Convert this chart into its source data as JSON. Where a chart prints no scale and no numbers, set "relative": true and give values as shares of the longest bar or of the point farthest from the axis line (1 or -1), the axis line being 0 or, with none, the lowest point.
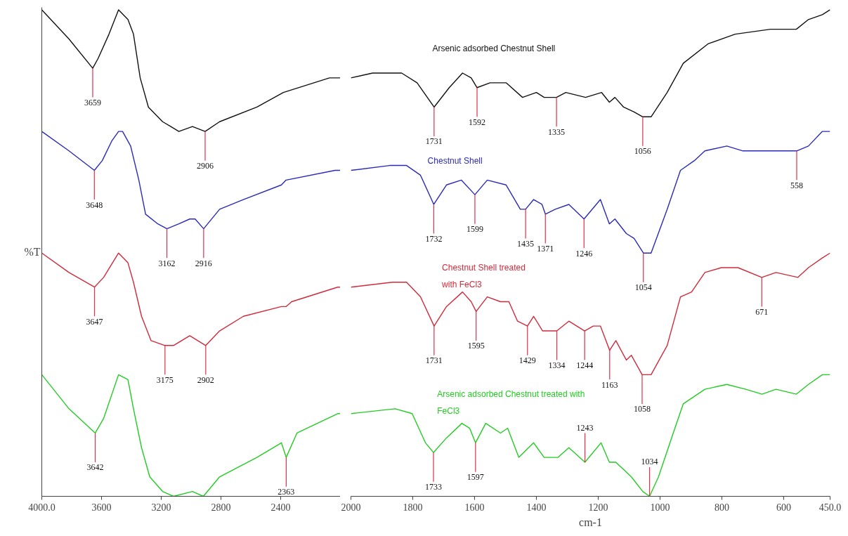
{
  "chart_data": [
    {
      "type": "line",
      "relative": true,
      "ylabel": "%T",
      "xlim": [
        4000,
        2000
      ],
      "xticks": [
        {
          "value": 4000,
          "label": "4000.0"
        },
        3600,
        3200,
        2800,
        2400
      ],
      "tick_labels": "x",
      "grid": false,
      "marker": "none",
      "line_style": "solid",
      "series": [
        {
          "color": "#111111",
          "x": [
            4000,
            3818,
            3659,
            3623,
            3550,
            3486,
            3423,
            3386,
            3341,
            3286,
            3191,
            3136,
            3082,
            2991,
            2906,
            2809,
            2559,
            2382,
            2073,
            2000
          ],
          "values": [
            1.0,
            0.94,
            0.88,
            0.9,
            0.95,
            1.0,
            0.98,
            0.95,
            0.86,
            0.8,
            0.77,
            0.76,
            0.75,
            0.76,
            0.75,
            0.77,
            0.8,
            0.83,
            0.86,
            0.86
          ]
        },
        {
          "color": "#2a2ab8",
          "x": [
            4000,
            3818,
            3648,
            3595,
            3532,
            3486,
            3459,
            3405,
            3350,
            3305,
            3223,
            3162,
            3082,
            3009,
            2973,
            2916,
            2809,
            2650,
            2395,
            2364,
            2036,
            2000
          ],
          "values": [
            0.75,
            0.71,
            0.67,
            0.69,
            0.73,
            0.75,
            0.75,
            0.72,
            0.65,
            0.58,
            0.56,
            0.55,
            0.56,
            0.57,
            0.57,
            0.55,
            0.59,
            0.61,
            0.64,
            0.65,
            0.67,
            0.67
          ]
        },
        {
          "color": "#d02a3a",
          "x": [
            4000,
            3818,
            3647,
            3586,
            3486,
            3423,
            3386,
            3332,
            3268,
            3175,
            3118,
            3009,
            2902,
            2809,
            2650,
            2395,
            2364,
            2327,
            2018,
            2000
          ],
          "values": [
            0.5,
            0.46,
            0.43,
            0.45,
            0.5,
            0.48,
            0.44,
            0.37,
            0.32,
            0.31,
            0.31,
            0.33,
            0.31,
            0.34,
            0.37,
            0.39,
            0.39,
            0.4,
            0.43,
            0.43
          ]
        },
        {
          "color": "#22cc22",
          "x": [
            4000,
            3818,
            3642,
            3586,
            3486,
            3423,
            3386,
            3332,
            3277,
            3191,
            3118,
            2991,
            2918,
            2809,
            2559,
            2395,
            2363,
            2291,
            2018,
            2000
          ],
          "values": [
            0.25,
            0.18,
            0.13,
            0.16,
            0.25,
            0.24,
            0.18,
            0.1,
            0.04,
            0.01,
            0.0,
            0.01,
            0.0,
            0.04,
            0.08,
            0.11,
            0.08,
            0.13,
            0.17,
            0.17
          ]
        }
      ],
      "annotations": [
        {
          "text": "3659",
          "x": 3659,
          "y": 0.88
        },
        {
          "text": "2906",
          "x": 2906,
          "y": 0.75
        },
        {
          "text": "3648",
          "x": 3648,
          "y": 0.67
        },
        {
          "text": "3162",
          "x": 3162,
          "y": 0.55
        },
        {
          "text": "2916",
          "x": 2916,
          "y": 0.55
        },
        {
          "text": "3647",
          "x": 3647,
          "y": 0.43
        },
        {
          "text": "3175",
          "x": 3175,
          "y": 0.31
        },
        {
          "text": "2902",
          "x": 2902,
          "y": 0.31
        },
        {
          "text": "3642",
          "x": 3642,
          "y": 0.13
        },
        {
          "text": "2363",
          "x": 2363,
          "y": 0.08
        }
      ]
    },
    {
      "type": "line",
      "relative": true,
      "xlabel": "cm-1",
      "xlim": [
        2000,
        450
      ],
      "xticks": [
        2000,
        1800,
        1600,
        1400,
        1200,
        1000,
        800,
        600,
        {
          "value": 450,
          "label": "450.0"
        }
      ],
      "tick_labels": "x",
      "grid": false,
      "marker": "none",
      "line_style": "solid",
      "series": [
        {
          "name": "Arsenic adsorbed Chestnut Shell",
          "color": "#111111",
          "x": [
            2000,
            1930,
            1836,
            1786,
            1731,
            1682,
            1639,
            1611,
            1592,
            1550,
            1498,
            1445,
            1400,
            1375,
            1335,
            1305,
            1241,
            1189,
            1164,
            1146,
            1118,
            1084,
            1056,
            1029,
            977,
            925,
            845,
            757,
            643,
            559,
            520,
            475,
            450
          ],
          "values": [
            0.86,
            0.87,
            0.87,
            0.85,
            0.8,
            0.84,
            0.87,
            0.86,
            0.84,
            0.85,
            0.85,
            0.82,
            0.83,
            0.82,
            0.82,
            0.83,
            0.82,
            0.83,
            0.81,
            0.82,
            0.8,
            0.79,
            0.78,
            0.78,
            0.83,
            0.89,
            0.93,
            0.95,
            0.96,
            0.96,
            0.98,
            0.99,
            1.0
          ]
        },
        {
          "name": "Chestnut Shell",
          "color": "#2a2ab8",
          "x": [
            2000,
            1875,
            1820,
            1775,
            1732,
            1691,
            1643,
            1599,
            1559,
            1498,
            1452,
            1435,
            1409,
            1382,
            1371,
            1339,
            1295,
            1246,
            1193,
            1164,
            1146,
            1109,
            1084,
            1054,
            1029,
            977,
            934,
            889,
            855,
            784,
            732,
            670,
            643,
            558,
            520,
            475,
            450
          ],
          "values": [
            0.67,
            0.68,
            0.68,
            0.66,
            0.6,
            0.64,
            0.65,
            0.62,
            0.65,
            0.64,
            0.59,
            0.59,
            0.61,
            0.6,
            0.58,
            0.59,
            0.6,
            0.57,
            0.61,
            0.56,
            0.57,
            0.54,
            0.53,
            0.5,
            0.5,
            0.59,
            0.67,
            0.69,
            0.71,
            0.72,
            0.71,
            0.71,
            0.71,
            0.71,
            0.72,
            0.75,
            0.75
          ]
        },
        {
          "name": "Chestnut Shell treated with FeCl3",
          "color": "#d02a3a",
          "x": [
            2000,
            1866,
            1820,
            1775,
            1731,
            1691,
            1639,
            1611,
            1595,
            1559,
            1516,
            1489,
            1461,
            1429,
            1409,
            1380,
            1334,
            1295,
            1244,
            1216,
            1193,
            1163,
            1143,
            1109,
            1093,
            1058,
            1029,
            977,
            934,
            898,
            855,
            802,
            748,
            671,
            625,
            554,
            520,
            475,
            450
          ],
          "values": [
            0.43,
            0.44,
            0.44,
            0.41,
            0.35,
            0.39,
            0.42,
            0.4,
            0.38,
            0.41,
            0.4,
            0.4,
            0.36,
            0.35,
            0.37,
            0.34,
            0.34,
            0.36,
            0.34,
            0.35,
            0.35,
            0.3,
            0.32,
            0.28,
            0.29,
            0.25,
            0.25,
            0.31,
            0.41,
            0.42,
            0.46,
            0.47,
            0.47,
            0.45,
            0.46,
            0.45,
            0.47,
            0.49,
            0.5
          ]
        },
        {
          "name": "Arsenic adsorbed Chestnut treated with FeCl3",
          "color": "#22cc22",
          "x": [
            2000,
            1857,
            1802,
            1759,
            1733,
            1691,
            1641,
            1616,
            1597,
            1564,
            1516,
            1493,
            1457,
            1409,
            1375,
            1330,
            1295,
            1243,
            1191,
            1164,
            1143,
            1093,
            1056,
            1034,
            1005,
            952,
            925,
            855,
            784,
            723,
            670,
            625,
            559,
            520,
            475,
            450
          ],
          "values": [
            0.17,
            0.18,
            0.17,
            0.11,
            0.09,
            0.12,
            0.15,
            0.14,
            0.11,
            0.15,
            0.13,
            0.14,
            0.08,
            0.11,
            0.08,
            0.08,
            0.1,
            0.07,
            0.11,
            0.07,
            0.07,
            0.04,
            0.01,
            0.0,
            0.04,
            0.14,
            0.19,
            0.22,
            0.23,
            0.22,
            0.21,
            0.22,
            0.21,
            0.23,
            0.25,
            0.25
          ]
        }
      ],
      "annotations": [
        {
          "text": "1731",
          "x": 1731,
          "y": 0.8
        },
        {
          "text": "1592",
          "x": 1592,
          "y": 0.84
        },
        {
          "text": "1335",
          "x": 1335,
          "y": 0.82
        },
        {
          "text": "1056",
          "x": 1056,
          "y": 0.78
        },
        {
          "text": "1732",
          "x": 1732,
          "y": 0.6
        },
        {
          "text": "1599",
          "x": 1599,
          "y": 0.62
        },
        {
          "text": "1435",
          "x": 1435,
          "y": 0.59
        },
        {
          "text": "1371",
          "x": 1371,
          "y": 0.58
        },
        {
          "text": "1246",
          "x": 1246,
          "y": 0.57
        },
        {
          "text": "1054",
          "x": 1054,
          "y": 0.5
        },
        {
          "text": "558",
          "x": 558,
          "y": 0.71
        },
        {
          "text": "1731",
          "x": 1731,
          "y": 0.35
        },
        {
          "text": "1595",
          "x": 1595,
          "y": 0.38
        },
        {
          "text": "1429",
          "x": 1429,
          "y": 0.35
        },
        {
          "text": "1334",
          "x": 1334,
          "y": 0.34
        },
        {
          "text": "1244",
          "x": 1244,
          "y": 0.34
        },
        {
          "text": "1163",
          "x": 1163,
          "y": 0.3
        },
        {
          "text": "1058",
          "x": 1058,
          "y": 0.25
        },
        {
          "text": "671",
          "x": 671,
          "y": 0.45
        },
        {
          "text": "1733",
          "x": 1733,
          "y": 0.09
        },
        {
          "text": "1597",
          "x": 1597,
          "y": 0.11
        },
        {
          "text": "1243",
          "x": 1243,
          "y": 0.07
        },
        {
          "text": "1034",
          "x": 1034,
          "y": 0.0
        }
      ]
    }
  ]
}
